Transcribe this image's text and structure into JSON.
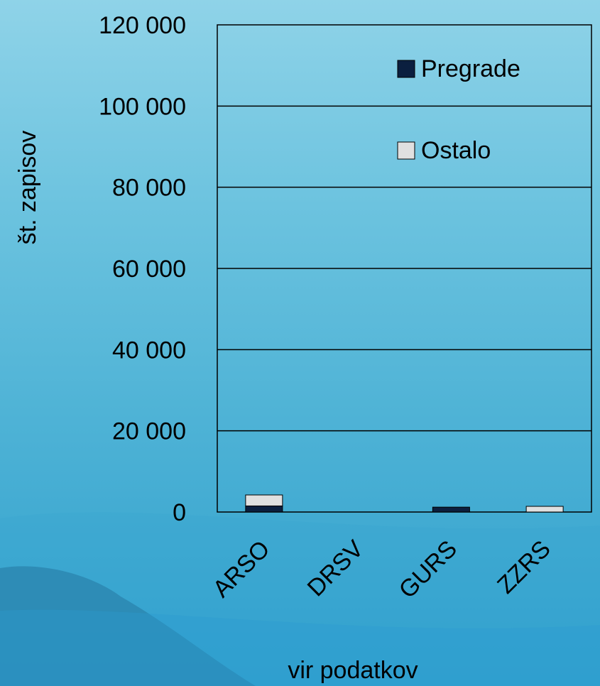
{
  "chart_data": {
    "type": "bar",
    "stacked": true,
    "title": "",
    "xlabel": "vir podatkov",
    "ylabel": "št. zapisov",
    "categories": [
      "ARSO",
      "DRSV",
      "GURS",
      "ZZRS"
    ],
    "series": [
      {
        "name": "Pregrade",
        "values": [
          1500,
          0,
          1200,
          0
        ],
        "color": "#0b1f3f"
      },
      {
        "name": "Ostalo",
        "values": [
          2700,
          0,
          0,
          1400
        ],
        "color": "#e0e0e0"
      }
    ],
    "ylim": [
      0,
      120000
    ],
    "yticks": [
      0,
      20000,
      40000,
      60000,
      80000,
      100000,
      120000
    ],
    "ytick_labels": [
      "0",
      "20 000",
      "40 000",
      "60 000",
      "80 000",
      "100 000",
      "120 000"
    ],
    "grid": true,
    "legend_position": "top-right",
    "colors": {
      "background_top": "#8fd3e8",
      "background_bottom": "#2e9fcc",
      "plot_border": "#000000",
      "gridline": "#000000",
      "text": "#000000"
    }
  }
}
